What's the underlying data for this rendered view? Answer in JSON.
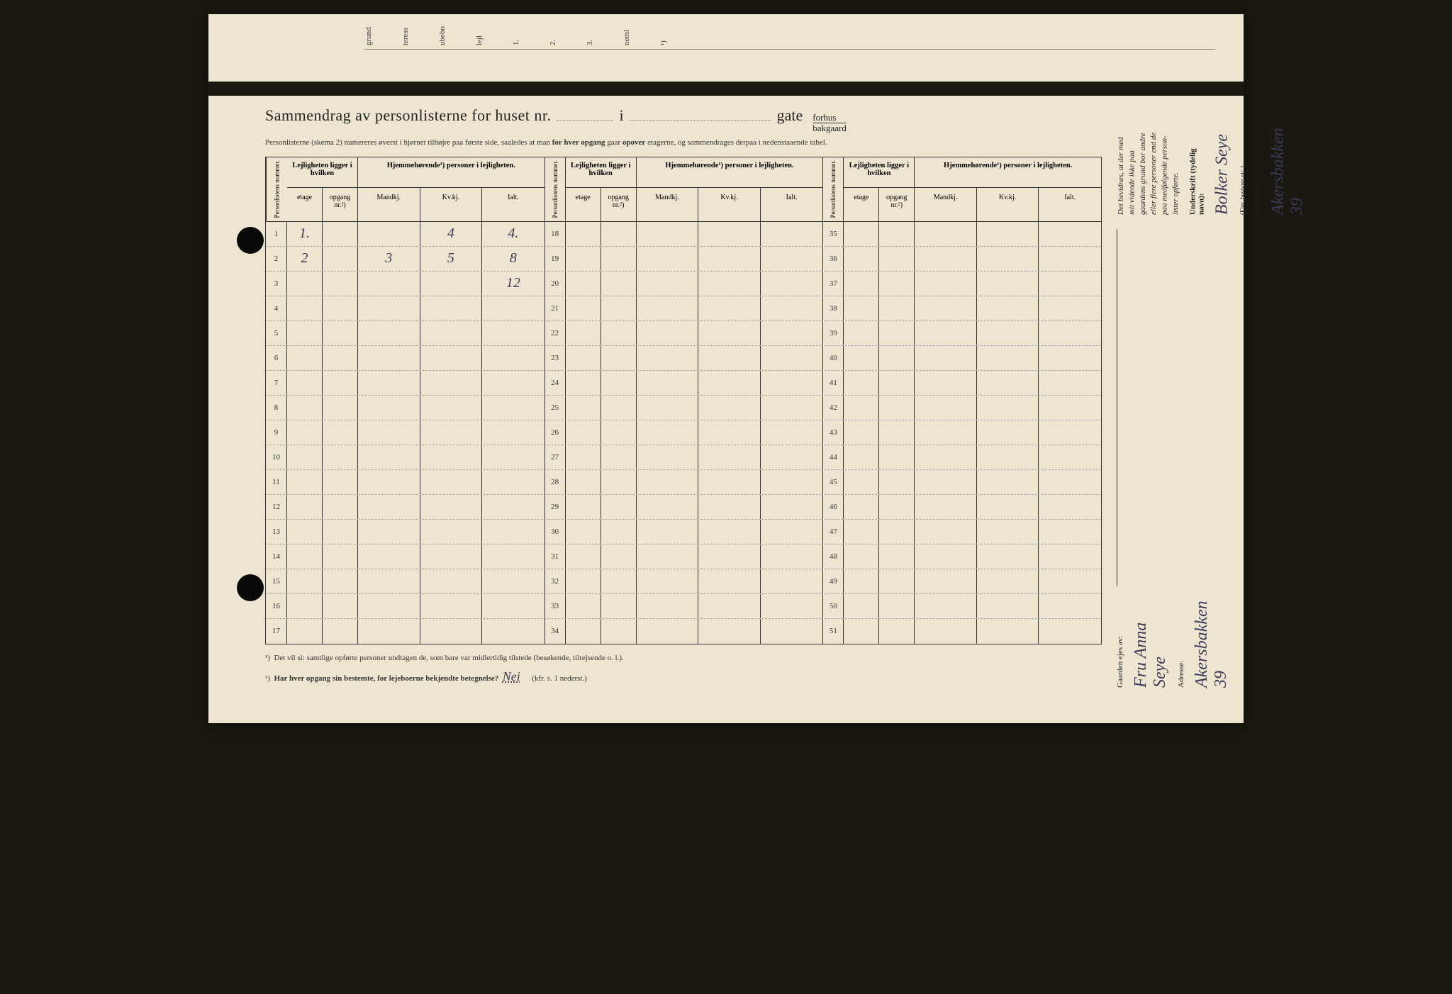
{
  "doc": {
    "title": "Sammendrag av personlisterne for huset nr.",
    "title_i": "i",
    "title_gate": "gate",
    "gate_top": "forhus",
    "gate_bot": "bakgaard",
    "subtitle_a": "Personlisterne (skema 2) numereres øverst i hjørnet tilhøjre paa første side, saaledes at man ",
    "subtitle_b": "for hver opgang",
    "subtitle_c": " gaar ",
    "subtitle_d": "opover",
    "subtitle_e": " etagerne, og sammendrages derpaa i nedenstaaende tabel."
  },
  "headers": {
    "pn": "Personlistens nummer.",
    "lej": "Lejligheten ligger i hvilken",
    "hjem": "Hjemmehørende¹) personer i lejligheten.",
    "etage": "etage",
    "opgang": "opgang nr.²)",
    "mand": "Mandkj.",
    "kv": "Kv.kj.",
    "ialt": "Ialt."
  },
  "rows1": [
    {
      "n": "1",
      "etage": "1.",
      "opg": "",
      "m": "",
      "k": "4",
      "i": "4."
    },
    {
      "n": "2",
      "etage": "2",
      "opg": "",
      "m": "3",
      "k": "5",
      "i": "8"
    },
    {
      "n": "3",
      "etage": "",
      "opg": "",
      "m": "",
      "k": "",
      "i": "12"
    },
    {
      "n": "4"
    },
    {
      "n": "5"
    },
    {
      "n": "6"
    },
    {
      "n": "7"
    },
    {
      "n": "8"
    },
    {
      "n": "9"
    },
    {
      "n": "10"
    },
    {
      "n": "11"
    },
    {
      "n": "12"
    },
    {
      "n": "13"
    },
    {
      "n": "14"
    },
    {
      "n": "15"
    },
    {
      "n": "16"
    },
    {
      "n": "17"
    }
  ],
  "rows2": [
    {
      "n": "18"
    },
    {
      "n": "19"
    },
    {
      "n": "20"
    },
    {
      "n": "21"
    },
    {
      "n": "22"
    },
    {
      "n": "23"
    },
    {
      "n": "24"
    },
    {
      "n": "25"
    },
    {
      "n": "26"
    },
    {
      "n": "27"
    },
    {
      "n": "28"
    },
    {
      "n": "29"
    },
    {
      "n": "30"
    },
    {
      "n": "31"
    },
    {
      "n": "32"
    },
    {
      "n": "33"
    },
    {
      "n": "34"
    }
  ],
  "rows3": [
    {
      "n": "35"
    },
    {
      "n": "36"
    },
    {
      "n": "37"
    },
    {
      "n": "38"
    },
    {
      "n": "39"
    },
    {
      "n": "40"
    },
    {
      "n": "41"
    },
    {
      "n": "42"
    },
    {
      "n": "43"
    },
    {
      "n": "44"
    },
    {
      "n": "45"
    },
    {
      "n": "46"
    },
    {
      "n": "47"
    },
    {
      "n": "48"
    },
    {
      "n": "49"
    },
    {
      "n": "50"
    },
    {
      "n": "51"
    }
  ],
  "footer": {
    "note1_sup": "¹)",
    "note1": "Det vil si: samtlige opførte personer undtagen de, som bare var midlertidig tilstede (besøkende, tilrejsende o. l.).",
    "note2_sup": "²)",
    "note2": "Har hver opgang sin bestemte, for lejeboerne bekjendte betegnelse?",
    "note2_hw": "Nei",
    "note2_tail": "(kfr. s. 1 nederst.)"
  },
  "right": {
    "statement": "Det bevidnes, at der med mit vidende ikke paa gaardens grund bor andre eller flere personer end de paa medfølgende  person-lister opførte.",
    "undersk_label": "Underskrift (tydelig navn):",
    "undersk_val": "Bolker Seye",
    "ejer_label": "(Ejer, bestyrer etc.)",
    "adresse_label": "Adresse:",
    "adresse_val": "Akersbakken 39",
    "owner_label": "Gaarden ejes av:",
    "owner_val": "Fru Anna Seye",
    "owner_adr_label": "Adresse:",
    "owner_adr_val": "Akersbakken 39"
  },
  "fragments": [
    "grund",
    "teress",
    "ubebo",
    "lejl",
    "1.",
    "2.",
    "3.",
    "neml",
    "¹)"
  ]
}
